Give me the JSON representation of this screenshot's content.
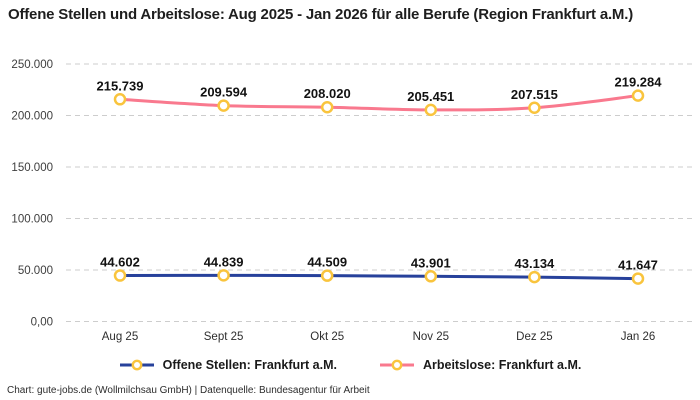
{
  "title": "Offene Stellen und Arbeitslose: Aug 2025 - Jan 2026 für alle Berufe (Region Frankfurt a.M.)",
  "footer": "Chart: gute-jobs.de (Wollmilchsau GmbH) | Datenquelle: Bundesagentur für Arbeit",
  "colors": {
    "offene_stellen_line": "#27419b",
    "arbeitslose_line": "#f9798e",
    "marker_ring": "#f9c43d",
    "marker_fill": "#ffffff",
    "grid_line": "#cdcdcd",
    "title_text": "#1e1e1e",
    "tick_text": "#3e3e3e",
    "value_label_text": "#121212",
    "background": "#ffffff"
  },
  "chart_data": {
    "type": "line",
    "title": "Offene Stellen und Arbeitslose: Aug 2025 - Jan 2026 für alle Berufe (Region Frankfurt a.M.)",
    "categories": [
      "Aug 25",
      "Sept 25",
      "Okt 25",
      "Nov 25",
      "Dez 25",
      "Jan 26"
    ],
    "series": [
      {
        "name": "Offene Stellen: Frankfurt a.M.",
        "values": [
          44602,
          44839,
          44509,
          43901,
          43134,
          41647
        ],
        "labels": [
          "44.602",
          "44.839",
          "44.509",
          "43.901",
          "43.134",
          "41.647"
        ],
        "color": "#27419b"
      },
      {
        "name": "Arbeitslose: Frankfurt a.M.",
        "values": [
          215739,
          209594,
          208020,
          205451,
          207515,
          219284
        ],
        "labels": [
          "215.739",
          "209.594",
          "208.020",
          "205.451",
          "207.515",
          "219.284"
        ],
        "color": "#f9798e"
      }
    ],
    "y_ticks": [
      "0,00",
      "50.000",
      "100.000",
      "150.000",
      "200.000",
      "250.000"
    ],
    "y_tick_values": [
      0,
      50000,
      100000,
      150000,
      200000,
      250000
    ],
    "xlabel": "",
    "ylabel": "",
    "ylim": [
      0,
      250000
    ],
    "grid": "dashed-horizontal",
    "legend_position": "bottom",
    "data_labels": true,
    "marker": "circle-yellow-ring"
  }
}
